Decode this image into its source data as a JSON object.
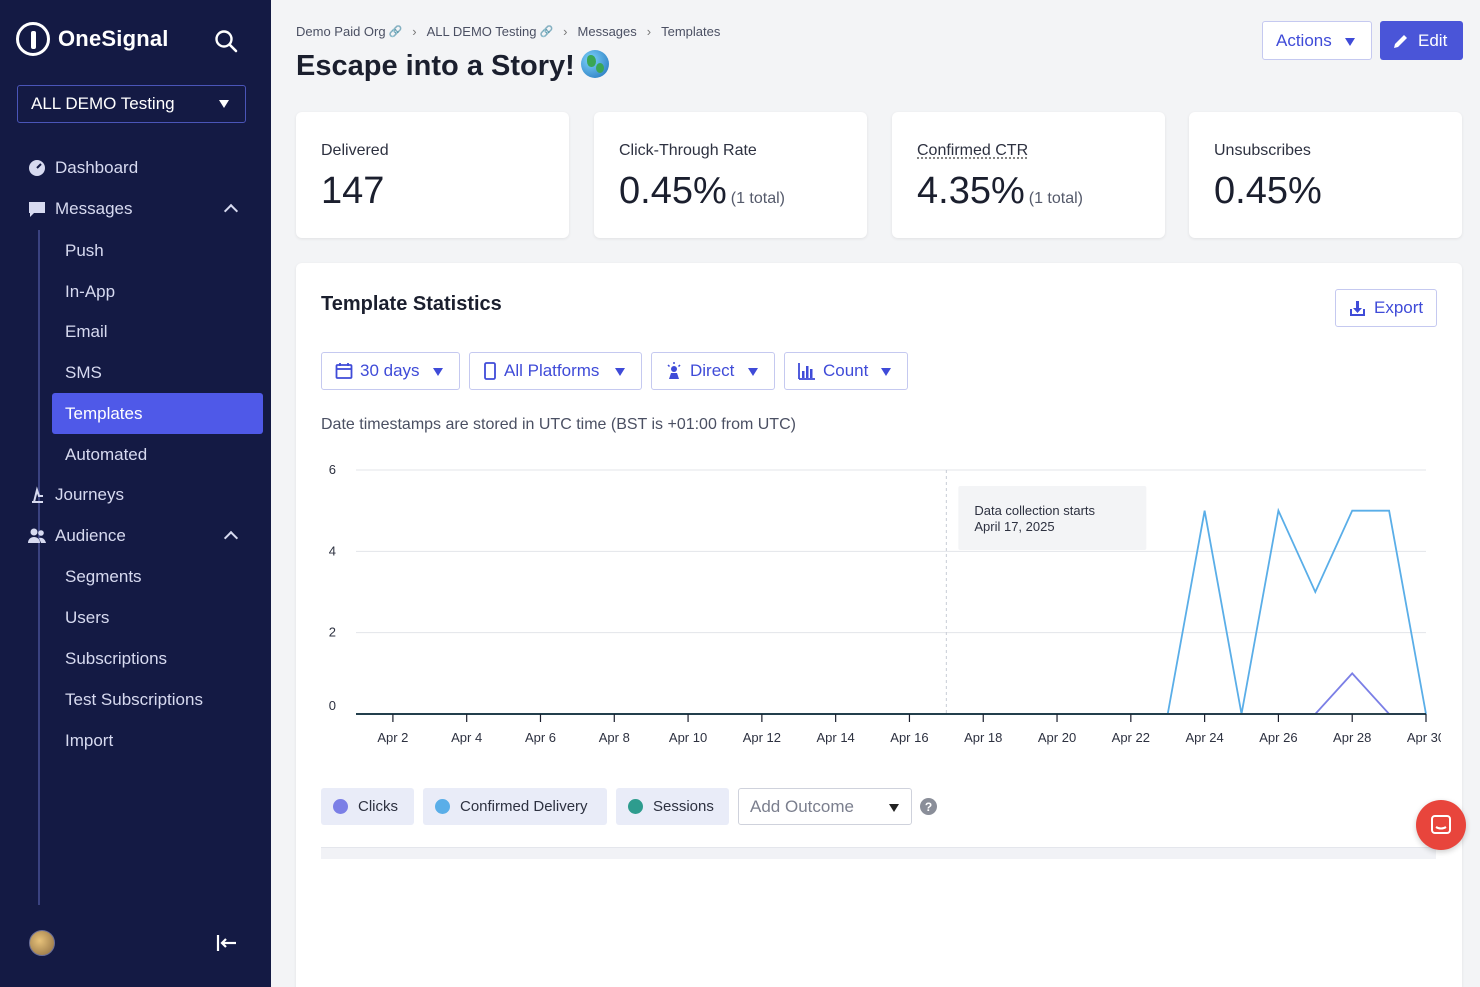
{
  "app": {
    "name": "OneSignal"
  },
  "sidebar": {
    "org_selector": "ALL DEMO Testing",
    "nav": {
      "dashboard": "Dashboard",
      "messages": "Messages",
      "messages_sub": [
        "Push",
        "In-App",
        "Email",
        "SMS",
        "Templates",
        "Automated"
      ],
      "journeys": "Journeys",
      "audience": "Audience",
      "audience_sub": [
        "Segments",
        "Users",
        "Subscriptions",
        "Test Subscriptions",
        "Import"
      ]
    },
    "active_item": "Templates"
  },
  "breadcrumb": [
    "Demo Paid Org",
    "ALL DEMO Testing",
    "Messages",
    "Templates"
  ],
  "page": {
    "title": "Escape into a Story!",
    "title_emoji_icon": "globe-icon"
  },
  "header_actions": {
    "actions": "Actions",
    "edit": "Edit"
  },
  "stats": [
    {
      "label": "Delivered",
      "value": "147",
      "sub": ""
    },
    {
      "label": "Click-Through Rate",
      "value": "0.45%",
      "sub": "(1 total)"
    },
    {
      "label": "Confirmed CTR",
      "value": "4.35%",
      "sub": "(1 total)"
    },
    {
      "label": "Unsubscribes",
      "value": "0.45%",
      "sub": ""
    }
  ],
  "panel": {
    "title": "Template Statistics",
    "export": "Export",
    "filters": {
      "range": "30 days",
      "platform": "All Platforms",
      "source": "Direct",
      "metric": "Count"
    },
    "tz_note": "Date timestamps are stored in UTC time (BST is +01:00 from UTC)",
    "annotation": {
      "line1": "Data collection starts",
      "line2": "April 17, 2025"
    },
    "legend": {
      "clicks": "Clicks",
      "confirmed": "Confirmed Delivery",
      "sessions": "Sessions"
    },
    "outcome_placeholder": "Add Outcome",
    "help": "?"
  },
  "colors": {
    "accent": "#4a55d8",
    "sidebar_bg": "#141a44",
    "clicks": "#7b7fe6",
    "confirmed": "#5aaee8",
    "sessions": "#2e9c8e"
  },
  "chart_data": {
    "type": "line",
    "x": [
      "Apr 1",
      "Apr 2",
      "Apr 3",
      "Apr 4",
      "Apr 5",
      "Apr 6",
      "Apr 7",
      "Apr 8",
      "Apr 9",
      "Apr 10",
      "Apr 11",
      "Apr 12",
      "Apr 13",
      "Apr 14",
      "Apr 15",
      "Apr 16",
      "Apr 17",
      "Apr 18",
      "Apr 19",
      "Apr 20",
      "Apr 21",
      "Apr 22",
      "Apr 23",
      "Apr 24",
      "Apr 25",
      "Apr 26",
      "Apr 27",
      "Apr 28",
      "Apr 29",
      "Apr 30"
    ],
    "x_tick_labels": [
      "Apr 2",
      "Apr 4",
      "Apr 6",
      "Apr 8",
      "Apr 10",
      "Apr 12",
      "Apr 14",
      "Apr 16",
      "Apr 18",
      "Apr 20",
      "Apr 22",
      "Apr 24",
      "Apr 26",
      "Apr 28",
      "Apr 30"
    ],
    "y_ticks": [
      0,
      2,
      4,
      6
    ],
    "ylim": [
      0,
      6
    ],
    "grid": true,
    "legend": "bottom",
    "annotation_x": "Apr 17",
    "series": [
      {
        "name": "Clicks",
        "color": "#7b7fe6",
        "values": [
          0,
          0,
          0,
          0,
          0,
          0,
          0,
          0,
          0,
          0,
          0,
          0,
          0,
          0,
          0,
          0,
          0,
          0,
          0,
          0,
          0,
          0,
          0,
          0,
          0,
          0,
          0,
          1,
          0,
          0
        ]
      },
      {
        "name": "Confirmed Delivery",
        "color": "#5aaee8",
        "values": [
          0,
          0,
          0,
          0,
          0,
          0,
          0,
          0,
          0,
          0,
          0,
          0,
          0,
          0,
          0,
          0,
          0,
          0,
          0,
          0,
          0,
          0,
          0,
          5,
          0,
          5,
          3,
          5,
          5,
          0
        ]
      },
      {
        "name": "Sessions",
        "color": "#2e9c8e",
        "values": [
          0,
          0,
          0,
          0,
          0,
          0,
          0,
          0,
          0,
          0,
          0,
          0,
          0,
          0,
          0,
          0,
          0,
          0,
          0,
          0,
          0,
          0,
          0,
          0,
          0,
          0,
          0,
          0,
          0,
          0
        ]
      }
    ]
  }
}
